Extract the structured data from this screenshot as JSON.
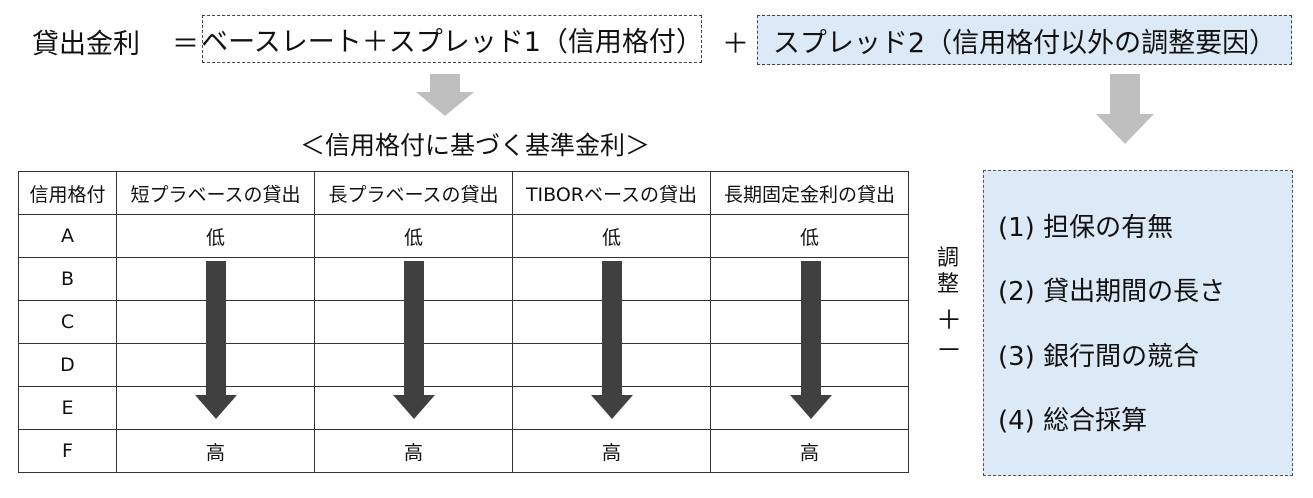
{
  "formula": {
    "lhs": "貸出金利",
    "eq": "＝",
    "term1": "ベースレート＋スプレッド1（信用格付）",
    "plus": "＋",
    "term2": "スプレッド2（信用格付以外の調整要因）"
  },
  "table": {
    "title": "＜信用格付に基づく基準金利＞",
    "headers": [
      "信用格付",
      "短プラベースの貸出",
      "長プラベースの貸出",
      "TIBORベースの貸出",
      "長期固定金利の貸出"
    ],
    "grades": [
      "A",
      "B",
      "C",
      "D",
      "E",
      "F"
    ],
    "low_label": "低",
    "high_label": "高"
  },
  "adjust": {
    "label_1": "調",
    "label_2": "整",
    "plus": "＋",
    "minus": "－"
  },
  "factors": [
    "(1) 担保の有無",
    "(2) 貸出期間の長さ",
    "(3) 銀行間の競合",
    "(4) 総合採算"
  ],
  "colors": {
    "box_fill": "#dce9f6",
    "gray_arrow": "#bfbfbf",
    "dark_arrow": "#404040"
  }
}
